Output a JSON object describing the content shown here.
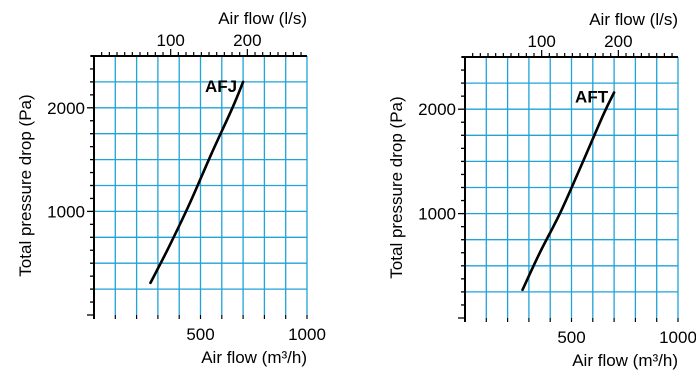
{
  "chart_data": [
    {
      "type": "line",
      "x_bottom": {
        "label": "Air flow (m³/h)",
        "lim": [
          0,
          1000
        ],
        "ticks": [
          500,
          1000
        ]
      },
      "x_top": {
        "label": "Air flow (l/s)",
        "ticks": [
          100,
          200
        ],
        "factor": 3.6
      },
      "y": {
        "label": "Total pressure drop (Pa)",
        "lim": [
          0,
          2500
        ],
        "ticks": [
          1000,
          2000
        ]
      },
      "grid": true,
      "grid_color": "#1fa3d8",
      "series": [
        {
          "name": "AFJ",
          "x": [
            265,
            350,
            450,
            550,
            650,
            700
          ],
          "y": [
            310,
            650,
            1080,
            1550,
            2000,
            2250
          ]
        }
      ]
    },
    {
      "type": "line",
      "x_bottom": {
        "label": "Air flow (m³/h)",
        "lim": [
          0,
          1000
        ],
        "ticks": [
          500,
          1000
        ]
      },
      "x_top": {
        "label": "Air flow (l/s)",
        "ticks": [
          100,
          200
        ],
        "factor": 3.6
      },
      "y": {
        "label": "Total pressure drop (Pa)",
        "lim": [
          0,
          2500
        ],
        "ticks": [
          1000,
          2000
        ]
      },
      "grid": true,
      "grid_color": "#1fa3d8",
      "series": [
        {
          "name": "AFT",
          "x": [
            270,
            350,
            450,
            550,
            650,
            700
          ],
          "y": [
            270,
            620,
            1020,
            1480,
            1950,
            2160
          ]
        }
      ]
    }
  ]
}
